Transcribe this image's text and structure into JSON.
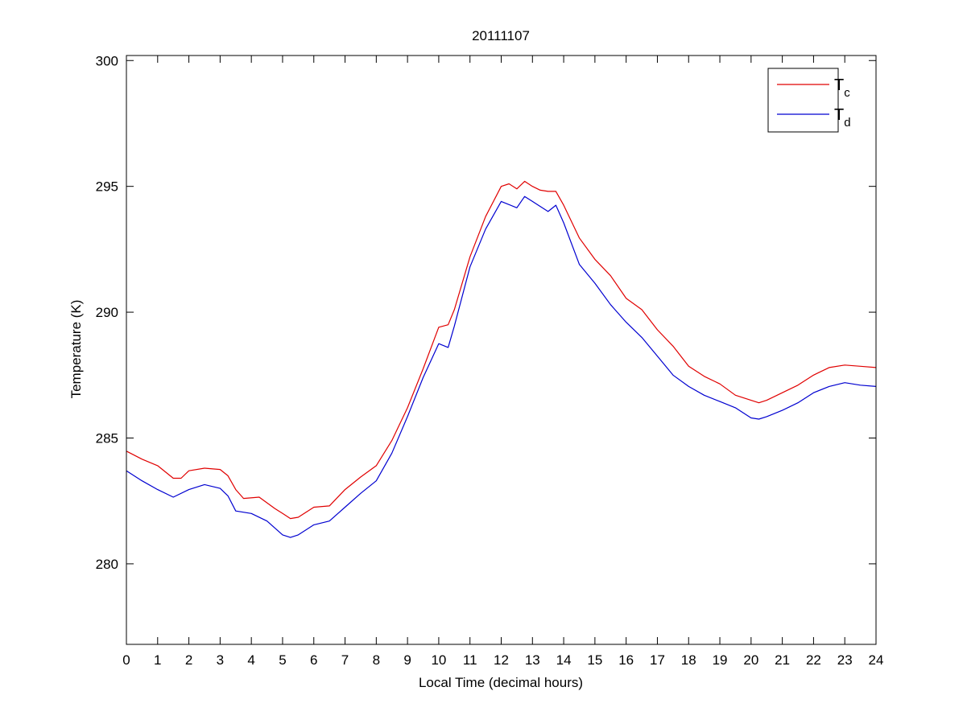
{
  "chart_data": {
    "type": "line",
    "title": "20111107",
    "xlabel": "Local Time (decimal hours)",
    "ylabel": "Temperature (K)",
    "xlim": [
      0,
      24
    ],
    "ylim": [
      276.8,
      300.2
    ],
    "xticks": [
      0,
      1,
      2,
      3,
      4,
      5,
      6,
      7,
      8,
      9,
      10,
      11,
      12,
      13,
      14,
      15,
      16,
      17,
      18,
      19,
      20,
      21,
      22,
      23,
      24
    ],
    "yticks": [
      280,
      285,
      290,
      295,
      300
    ],
    "grid": false,
    "legend_position": "top-right",
    "series": [
      {
        "name": "T",
        "subscript": "c",
        "color": "#e00000",
        "x": [
          0,
          0.5,
          1,
          1.5,
          1.75,
          2,
          2.5,
          3,
          3.25,
          3.5,
          3.75,
          4.25,
          4.75,
          5,
          5.25,
          5.5,
          6,
          6.5,
          7,
          7.5,
          8,
          8.5,
          9,
          9.5,
          10,
          10.3,
          10.5,
          11,
          11.5,
          12,
          12.25,
          12.5,
          12.75,
          13,
          13.25,
          13.5,
          13.75,
          14,
          14.5,
          15,
          15.5,
          16,
          16.5,
          17,
          17.5,
          18,
          18.5,
          19,
          19.5,
          20,
          20.25,
          20.5,
          21,
          21.5,
          22,
          22.5,
          23,
          23.5,
          24
        ],
        "y": [
          284.48,
          284.16,
          283.9,
          283.4,
          283.4,
          283.7,
          283.8,
          283.75,
          283.5,
          282.95,
          282.6,
          282.65,
          282.2,
          282.0,
          281.8,
          281.85,
          282.25,
          282.3,
          282.95,
          283.45,
          283.9,
          284.9,
          286.2,
          287.75,
          289.4,
          289.5,
          290.1,
          292.2,
          293.8,
          295.0,
          295.1,
          294.9,
          295.2,
          295.0,
          294.85,
          294.8,
          294.8,
          294.25,
          292.95,
          292.1,
          291.45,
          290.55,
          290.1,
          289.3,
          288.65,
          287.85,
          287.45,
          287.15,
          286.7,
          286.5,
          286.4,
          286.5,
          286.8,
          287.1,
          287.5,
          287.8,
          287.9,
          287.85,
          287.8
        ]
      },
      {
        "name": "T",
        "subscript": "d",
        "color": "#0000d0",
        "x": [
          0,
          0.5,
          1,
          1.5,
          2,
          2.5,
          3,
          3.25,
          3.5,
          4,
          4.5,
          5,
          5.25,
          5.5,
          6,
          6.5,
          7,
          7.5,
          8,
          8.5,
          9,
          9.5,
          10,
          10.3,
          10.5,
          11,
          11.5,
          12,
          12.5,
          12.75,
          13,
          13.5,
          13.75,
          14,
          14.5,
          15,
          15.5,
          16,
          16.5,
          17,
          17.5,
          18,
          18.5,
          19,
          19.5,
          20,
          20.25,
          20.5,
          21,
          21.5,
          22,
          22.5,
          23,
          23.5,
          24
        ],
        "y": [
          283.7,
          283.3,
          282.95,
          282.65,
          282.95,
          283.15,
          283.0,
          282.7,
          282.1,
          282.0,
          281.7,
          281.15,
          281.05,
          281.15,
          281.55,
          281.7,
          282.25,
          282.8,
          283.3,
          284.4,
          285.85,
          287.4,
          288.75,
          288.6,
          289.45,
          291.8,
          293.3,
          294.4,
          294.15,
          294.6,
          294.4,
          294.0,
          294.25,
          293.55,
          291.9,
          291.15,
          290.3,
          289.6,
          289.0,
          288.25,
          287.5,
          287.05,
          286.7,
          286.45,
          286.2,
          285.8,
          285.75,
          285.85,
          286.1,
          286.4,
          286.8,
          287.05,
          287.2,
          287.1,
          287.05
        ]
      }
    ]
  }
}
